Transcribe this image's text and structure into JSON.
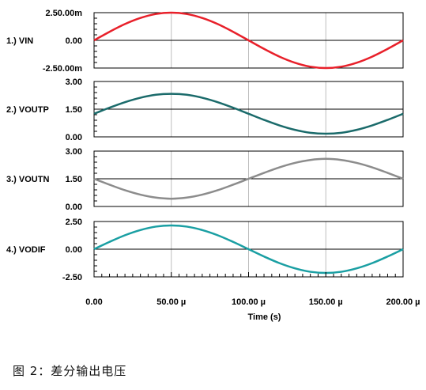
{
  "caption": "图 2：差分输出电压",
  "chart_data": {
    "type": "line",
    "xlabel": "Time (s)",
    "xlim": [
      0,
      200
    ],
    "x_tick_labels": [
      "0.00",
      "50.00 µ",
      "100.00 µ",
      "150.00 µ",
      "200.00 µ"
    ],
    "x": [
      0,
      10,
      20,
      30,
      40,
      50,
      60,
      70,
      80,
      90,
      100,
      110,
      120,
      130,
      140,
      150,
      160,
      170,
      180,
      190,
      200
    ],
    "grid": true,
    "panels": [
      {
        "label": "1.) VIN",
        "color": "#e8202a",
        "ylim": [
          -2.5,
          2.5
        ],
        "y_tick_labels": [
          "2.50.00m",
          "0.00",
          "-2.50.00m"
        ],
        "values": [
          0,
          0.77,
          1.47,
          2.02,
          2.38,
          2.5,
          2.38,
          2.02,
          1.47,
          0.77,
          0,
          -0.77,
          -1.47,
          -2.02,
          -2.38,
          -2.5,
          -2.38,
          -2.02,
          -1.47,
          -0.77,
          0
        ]
      },
      {
        "label": "2.) VOUTP",
        "color": "#1b6b6b",
        "ylim": [
          0,
          3
        ],
        "y_tick_labels": [
          "3.00",
          "1.50",
          "0.00"
        ],
        "values": [
          1.25,
          1.58,
          1.88,
          2.12,
          2.28,
          2.33,
          2.28,
          2.12,
          1.88,
          1.58,
          1.25,
          0.92,
          0.62,
          0.38,
          0.22,
          0.17,
          0.22,
          0.38,
          0.62,
          0.92,
          1.25
        ]
      },
      {
        "label": "3.) VOUTN",
        "color": "#8c8c8c",
        "ylim": [
          0,
          3
        ],
        "y_tick_labels": [
          "3.00",
          "1.50",
          "0.00"
        ],
        "values": [
          1.5,
          1.18,
          0.88,
          0.64,
          0.48,
          0.42,
          0.48,
          0.64,
          0.88,
          1.18,
          1.5,
          1.82,
          2.12,
          2.36,
          2.52,
          2.58,
          2.52,
          2.36,
          2.12,
          1.82,
          1.5
        ]
      },
      {
        "label": "4.) VODIF",
        "color": "#1a9fa3",
        "ylim": [
          -2.5,
          2.5
        ],
        "y_tick_labels": [
          "2.50",
          "0.00",
          "-2.50"
        ],
        "values": [
          0,
          0.66,
          1.26,
          1.73,
          2.04,
          2.14,
          2.04,
          1.73,
          1.26,
          0.66,
          0,
          -0.66,
          -1.26,
          -1.73,
          -2.04,
          -2.14,
          -2.04,
          -1.73,
          -1.26,
          -0.66,
          0
        ]
      }
    ]
  }
}
